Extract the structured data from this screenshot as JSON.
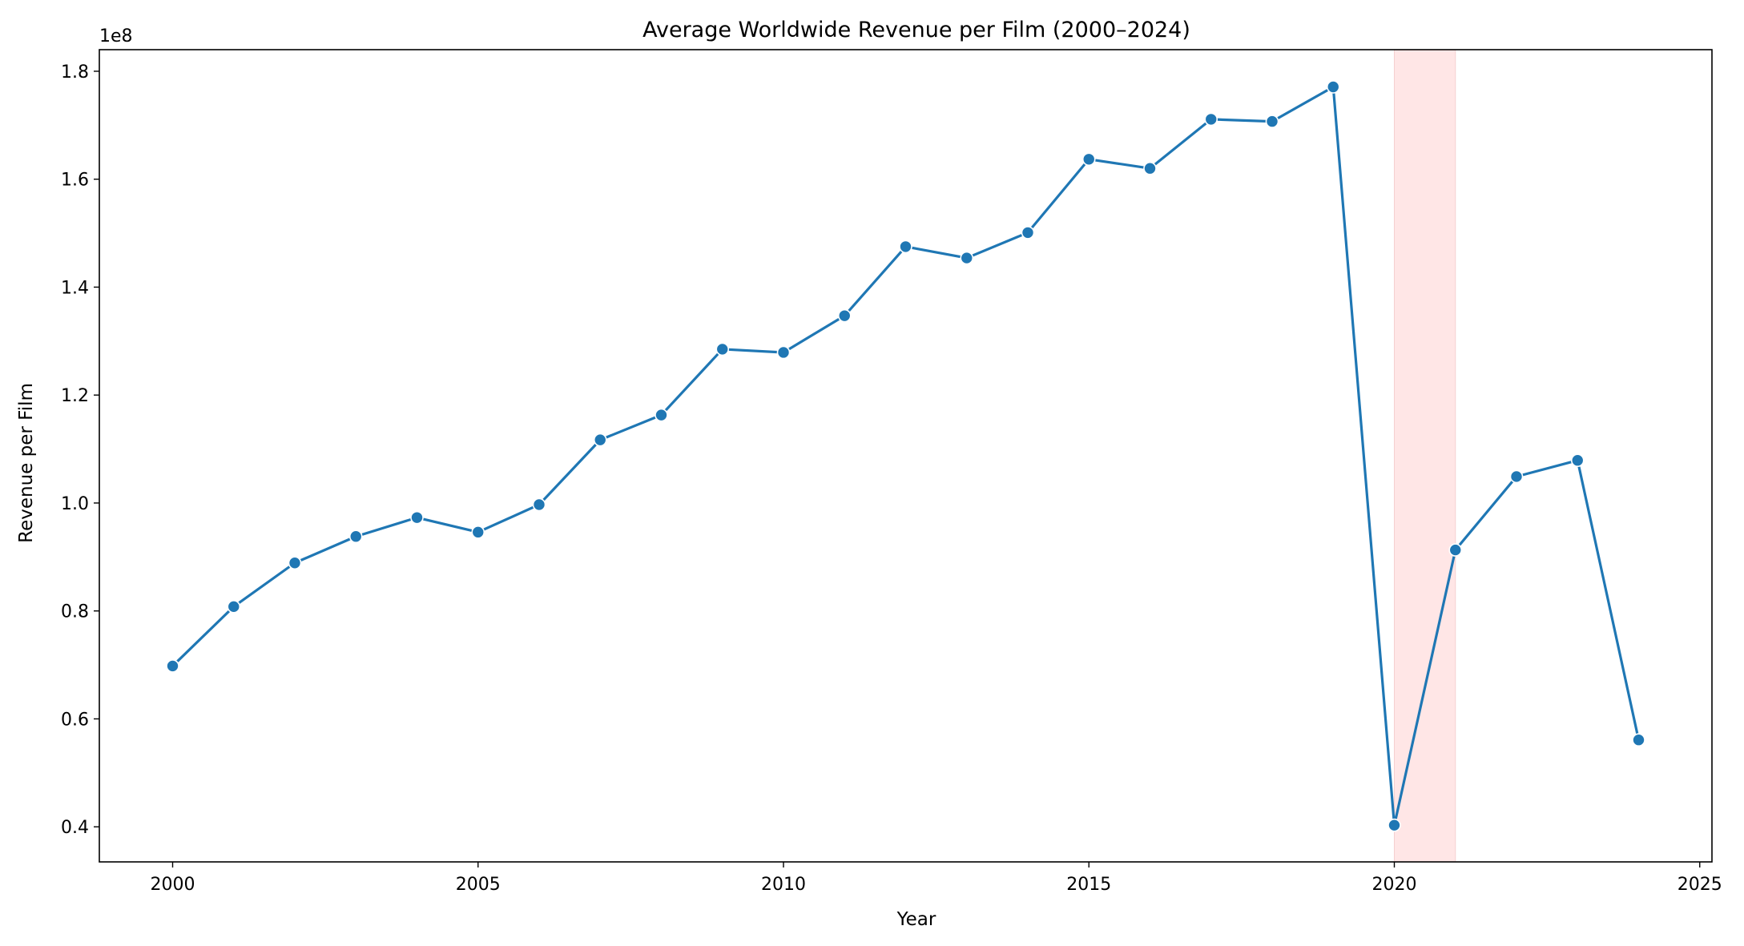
{
  "chart_data": {
    "type": "line",
    "title": "Average Worldwide Revenue per Film (2000–2024)",
    "xlabel": "Year",
    "ylabel": "Revenue per Film",
    "y_offset_label": "1e8",
    "xlim": [
      1998.8,
      2025.2
    ],
    "ylim": [
      33500000,
      184000000
    ],
    "x_ticks": [
      2000,
      2005,
      2010,
      2015,
      2020,
      2025
    ],
    "y_ticks": [
      40000000,
      60000000,
      80000000,
      100000000,
      120000000,
      140000000,
      160000000,
      180000000
    ],
    "y_tick_labels": [
      "0.4",
      "0.6",
      "0.8",
      "1.0",
      "1.2",
      "1.4",
      "1.6",
      "1.8"
    ],
    "grid": false,
    "line_color": "#1f77b4",
    "marker_edge_color": "#ffffff",
    "highlight_span": {
      "x_start": 2020,
      "x_end": 2021,
      "color": "#ffe6e6"
    },
    "series": [
      {
        "x": [
          2000,
          2001,
          2002,
          2003,
          2004,
          2005,
          2006,
          2007,
          2008,
          2009,
          2010,
          2011,
          2012,
          2013,
          2014,
          2015,
          2016,
          2017,
          2018,
          2019,
          2020,
          2021,
          2022,
          2023,
          2024
        ],
        "values": [
          69800000,
          80800000,
          88900000,
          93800000,
          97300000,
          94600000,
          99700000,
          111700000,
          116300000,
          128500000,
          127900000,
          134700000,
          147500000,
          145400000,
          150100000,
          163700000,
          162000000,
          171100000,
          170700000,
          177100000,
          40300000,
          91300000,
          104900000,
          107900000,
          56100000
        ]
      }
    ]
  }
}
